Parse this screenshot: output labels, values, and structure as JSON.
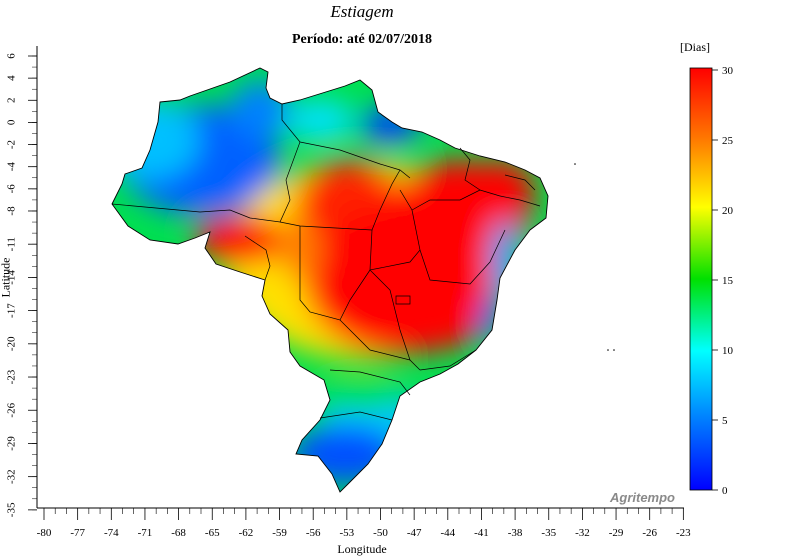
{
  "title": "Estiagem",
  "subtitle": "Período: até 02/07/2018",
  "unit": "[Dias]",
  "xlabel": "Longitude",
  "ylabel": "Latitude",
  "brand": "Agritempo",
  "axes": {
    "x_ticks": [
      -80,
      -77,
      -74,
      -71,
      -68,
      -65,
      -62,
      -59,
      -56,
      -53,
      -50,
      -47,
      -44,
      -41,
      -38,
      -35,
      -32,
      -29,
      -26,
      -23
    ],
    "y_ticks": [
      6,
      4,
      2,
      0,
      -2,
      -4,
      -6,
      -8,
      -11,
      -14,
      -17,
      -20,
      -23,
      -26,
      -29,
      -32,
      -35
    ]
  },
  "legend": {
    "ticks": [
      30,
      25,
      20,
      15,
      10,
      5,
      0
    ],
    "colors": [
      "#ff0000",
      "#ff7a00",
      "#ffff00",
      "#00e000",
      "#00ffff",
      "#0080ff",
      "#0000ff"
    ]
  }
}
